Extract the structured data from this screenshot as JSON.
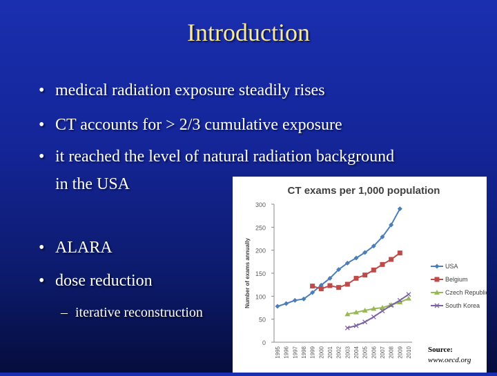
{
  "slide": {
    "title": "Introduction",
    "bullets": [
      "medical radiation exposure steadily rises",
      "CT accounts for > 2/3 cumulative exposure",
      "it reached the level of natural radiation background",
      "in the USA",
      "ALARA",
      "dose reduction"
    ],
    "bullet_symbol": "•",
    "sub_symbol": "–",
    "sub_bullet": "iterative reconstruction",
    "source_label": "Source:",
    "source_url": "www.oecd.org"
  },
  "colors": {
    "title": "#f7e99a",
    "text": "#ffffff",
    "background": "#142597"
  },
  "chart_data": {
    "type": "line",
    "title": "CT exams per 1,000 population",
    "ylabel": "Number of exams annually",
    "xlabel": "",
    "ylim": [
      0,
      300
    ],
    "yticks": [
      0,
      50,
      100,
      150,
      200,
      250,
      300
    ],
    "x": [
      "1995",
      "1996",
      "1997",
      "1998",
      "1999",
      "2000",
      "2001",
      "2002",
      "2003",
      "2004",
      "2005",
      "2006",
      "2007",
      "2008",
      "2009",
      "2010"
    ],
    "legend_position": "right",
    "series": [
      {
        "name": "USA",
        "color": "#4a7ebb",
        "marker": "diamond",
        "values": [
          78,
          84,
          91,
          94,
          108,
          124,
          139,
          158,
          172,
          183,
          195,
          209,
          229,
          255,
          290,
          null
        ]
      },
      {
        "name": "Belgium",
        "color": "#be4b48",
        "marker": "square",
        "values": [
          null,
          null,
          null,
          null,
          122,
          116,
          123,
          119,
          126,
          139,
          146,
          157,
          169,
          180,
          194,
          null
        ]
      },
      {
        "name": "Czech Republic",
        "color": "#98b954",
        "marker": "triangle",
        "values": [
          null,
          null,
          null,
          null,
          null,
          null,
          null,
          null,
          61,
          65,
          69,
          73,
          75,
          81,
          87,
          95
        ]
      },
      {
        "name": "South Korea",
        "color": "#7d60a0",
        "marker": "x",
        "values": [
          null,
          null,
          null,
          null,
          null,
          null,
          null,
          null,
          31,
          36,
          44,
          55,
          68,
          80,
          91,
          104
        ]
      }
    ]
  }
}
